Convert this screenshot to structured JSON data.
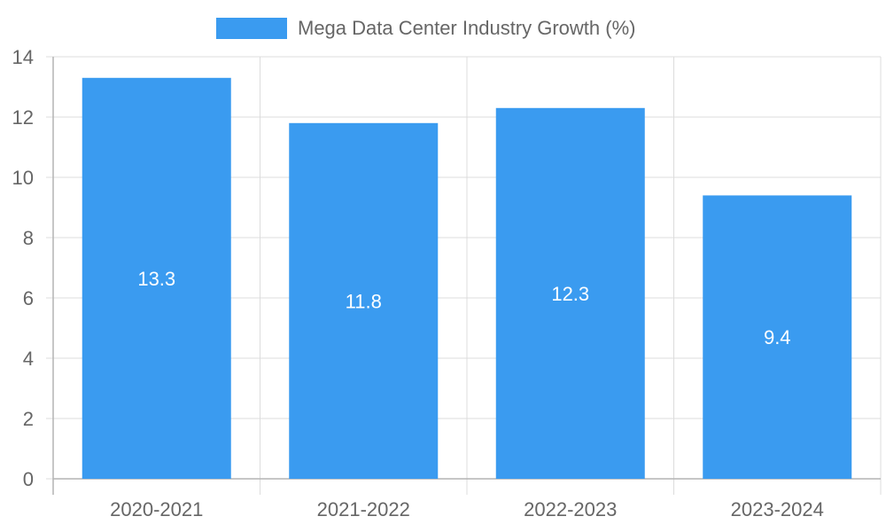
{
  "chart_data": {
    "type": "bar",
    "title": "",
    "xlabel": "",
    "ylabel": "",
    "legend_position": "top-center",
    "grid": true,
    "categories": [
      "2020-2021",
      "2021-2022",
      "2022-2023",
      "2023-2024"
    ],
    "series": [
      {
        "name": "Mega Data Center Industry Growth (%)",
        "values": [
          13.3,
          11.8,
          12.3,
          9.4
        ],
        "value_labels": [
          "13.3",
          "11.8",
          "12.3",
          "9.4"
        ],
        "color": "#3a9bf0"
      }
    ],
    "ylim": [
      0,
      14
    ],
    "yticks": [
      0,
      2,
      4,
      6,
      8,
      10,
      12,
      14
    ]
  },
  "colors": {
    "bar": "#3a9bf0",
    "grid": "#dcdcdc",
    "axis": "#b3b3b3",
    "text": "#666666",
    "value_label": "#ffffff"
  }
}
